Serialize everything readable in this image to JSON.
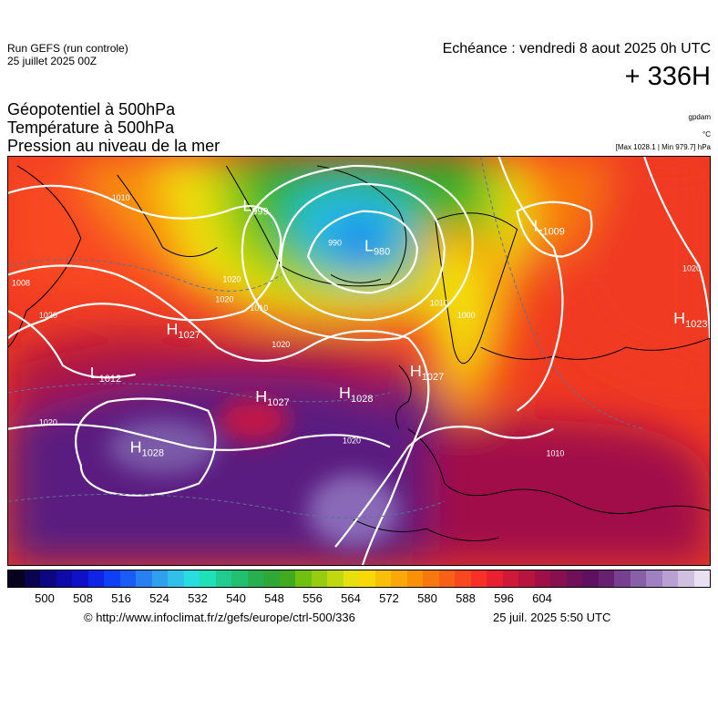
{
  "header": {
    "run_label": "Run GEFS (run controle)",
    "run_date": "25 juillet 2025 00Z",
    "echeance": "Echéance : vendredi 8 aout 2025 0h UTC",
    "offset": "+ 336H"
  },
  "titles": {
    "line1": "Géopotentiel à 500hPa",
    "line2": "Température à 500hPa",
    "line3": "Pression au niveau de la mer"
  },
  "units": {
    "geopotential": "gpdam",
    "temperature": "°C",
    "pressure_range": "[Max 1028.1 | Min 979.7] hPa"
  },
  "pressure_centers": [
    {
      "type": "L",
      "value": "999"
    },
    {
      "type": "L",
      "value": "980"
    },
    {
      "type": "L",
      "value": "1009"
    },
    {
      "type": "H",
      "value": "1027"
    },
    {
      "type": "L",
      "value": "1012"
    },
    {
      "type": "H",
      "value": "1027"
    },
    {
      "type": "H",
      "value": "1028"
    },
    {
      "type": "H",
      "value": "1027"
    },
    {
      "type": "H",
      "value": "1028"
    },
    {
      "type": "H",
      "value": "1023"
    }
  ],
  "isobar_labels": [
    "1010",
    "1008",
    "1020",
    "1020",
    "1010",
    "1020",
    "1020",
    "1020",
    "990",
    "1000",
    "1010",
    "1020",
    "1010",
    "1020"
  ],
  "colorbar": {
    "colors": [
      "#07021e",
      "#0a0350",
      "#0c0680",
      "#0e0aa8",
      "#1010c8",
      "#1024e6",
      "#1040f5",
      "#1a5cf6",
      "#2880f2",
      "#30a0ee",
      "#30c0ea",
      "#28dce0",
      "#20e0b8",
      "#20cc90",
      "#20c070",
      "#28b050",
      "#30a838",
      "#40aa20",
      "#70c010",
      "#98cc10",
      "#c0d810",
      "#e6e010",
      "#f8d808",
      "#f8c008",
      "#f8a808",
      "#f89008",
      "#f87810",
      "#f86018",
      "#f84820",
      "#f83028",
      "#e82030",
      "#d01838",
      "#b81440",
      "#a01048",
      "#881050",
      "#701058",
      "#601060",
      "#682070",
      "#784090",
      "#8860a8",
      "#a080c0",
      "#b8a0d0",
      "#d0c0e0",
      "#e8e0f0"
    ],
    "ticks": [
      "500",
      "508",
      "516",
      "524",
      "532",
      "540",
      "548",
      "556",
      "564",
      "572",
      "580",
      "588",
      "596",
      "604"
    ]
  },
  "footer": {
    "url": "© http://www.infoclimat.fr/z/gefs/europe/ctrl-500/336",
    "generated": "25 juil. 2025  5:50 UTC"
  },
  "map_colors": {
    "warm_red": "#f03a22",
    "dark_red": "#b01840",
    "purple": "#5a1a80",
    "yellow": "#f2e210",
    "orange": "#f79a10",
    "green": "#2bb22b",
    "cyan": "#28c0e0",
    "blue": "#1e7cf0"
  }
}
